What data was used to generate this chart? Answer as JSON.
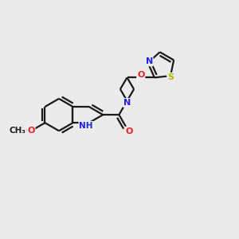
{
  "background_color": "#ebebeb",
  "bond_color": "#1a1a1a",
  "bond_width": 1.6,
  "atom_colors": {
    "N": "#2020ee",
    "O": "#ee2020",
    "S": "#b8b800",
    "NH": "#2020ee",
    "C": "#1a1a1a"
  },
  "figsize": [
    3.0,
    3.0
  ],
  "dpi": 100
}
